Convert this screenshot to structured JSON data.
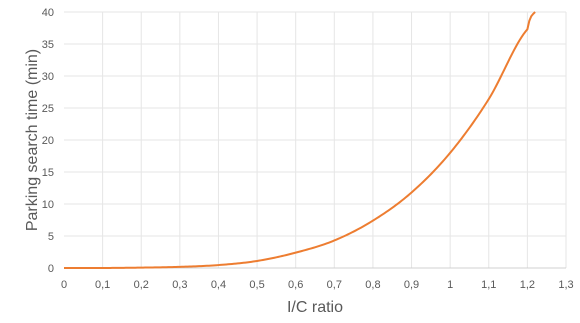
{
  "chart_data": {
    "type": "line",
    "title": "",
    "xlabel": "I/C ratio",
    "ylabel": "Parking search time (min)",
    "xlim": [
      0,
      1.3
    ],
    "ylim": [
      0,
      40
    ],
    "x_ticks": [
      "0",
      "0,1",
      "0,2",
      "0,3",
      "0,4",
      "0,5",
      "0,6",
      "0,7",
      "0,8",
      "0,9",
      "1",
      "1,1",
      "1,2",
      "1,3"
    ],
    "y_ticks": [
      "0",
      "5",
      "10",
      "15",
      "20",
      "25",
      "30",
      "35",
      "40"
    ],
    "grid": true,
    "legend": "none",
    "series": [
      {
        "color": "#ed7d31",
        "x": [
          0,
          0.1,
          0.2,
          0.3,
          0.4,
          0.5,
          0.6,
          0.7,
          0.8,
          0.9,
          1.0,
          1.1,
          1.2,
          1.22
        ],
        "y": [
          0,
          0.002,
          0.06,
          0.18,
          0.46,
          1.1,
          2.4,
          4.3,
          7.4,
          11.8,
          18.0,
          26.4,
          37.3,
          40.0
        ]
      }
    ]
  }
}
